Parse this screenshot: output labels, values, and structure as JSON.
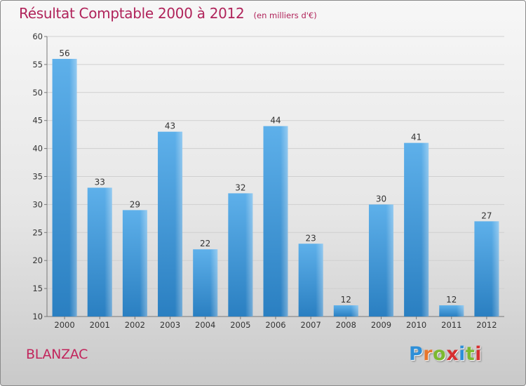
{
  "title": "Résultat Comptable 2000 à 2012",
  "unit": "(en milliers d'€)",
  "commune": "BLANZAC",
  "logo": {
    "letters": [
      "P",
      "r",
      "o",
      "x",
      "i",
      "t",
      "i"
    ],
    "colors": [
      "#2e8fd8",
      "#e8762c",
      "#7cb92f",
      "#d62f2f",
      "#2e8fd8",
      "#7cb92f",
      "#d62f2f"
    ]
  },
  "colors": {
    "bar_top": "#5eb0ea",
    "bar_bottom": "#2a7fc1",
    "title": "#b0235a",
    "grid": "#cfcfcf"
  },
  "chart_data": {
    "type": "bar",
    "title": "Résultat Comptable 2000 à 2012",
    "xlabel": "",
    "ylabel": "(en milliers d'€)",
    "categories": [
      "2000",
      "2001",
      "2002",
      "2003",
      "2004",
      "2005",
      "2006",
      "2007",
      "2008",
      "2009",
      "2010",
      "2011",
      "2012"
    ],
    "values": [
      56,
      33,
      29,
      43,
      22,
      32,
      44,
      23,
      12,
      30,
      41,
      12,
      27
    ],
    "ylim": [
      10,
      60
    ],
    "yticks": [
      10,
      15,
      20,
      25,
      30,
      35,
      40,
      45,
      50,
      55,
      60
    ],
    "grid": true
  }
}
